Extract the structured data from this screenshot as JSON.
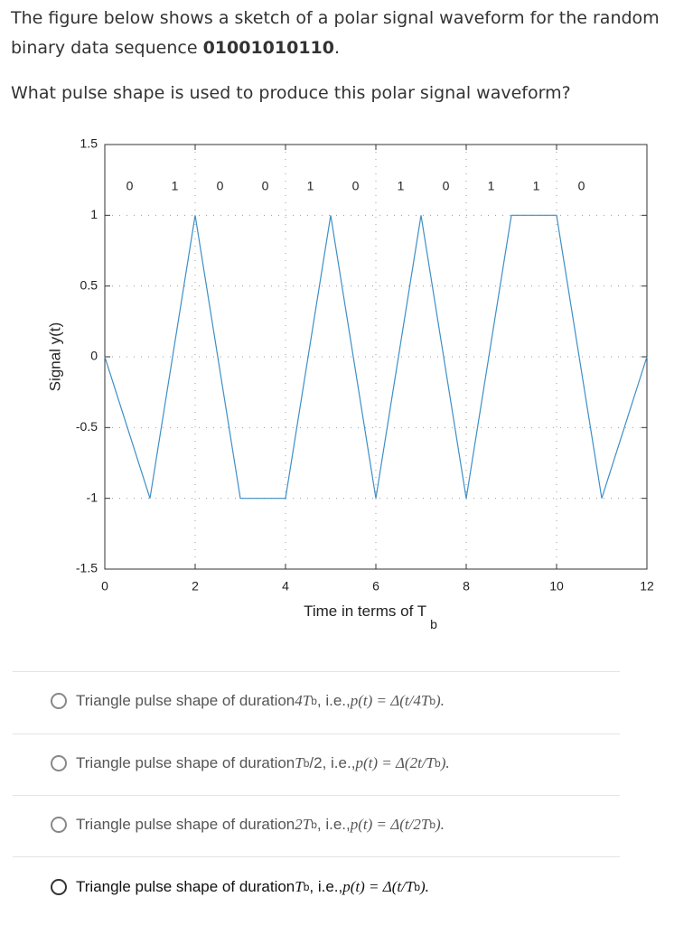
{
  "question": {
    "lead": "The figure below shows a sketch of a polar signal waveform for the random binary data sequence ",
    "sequence": "01001010110",
    "end": ".",
    "prompt": "What pulse shape is used to produce this polar signal waveform?"
  },
  "chart_data": {
    "type": "line",
    "x": [
      0,
      1,
      2,
      3,
      4,
      5,
      6,
      7,
      8,
      9,
      10,
      11,
      12
    ],
    "values": [
      0,
      -1,
      1,
      -1,
      -1,
      1,
      -1,
      1,
      -1,
      1,
      1,
      -1,
      0
    ],
    "color": "#3d8fc6",
    "xlim": [
      0,
      12
    ],
    "xticks": [
      0,
      2,
      4,
      6,
      8,
      10,
      12
    ],
    "ylim": [
      -1.5,
      1.5
    ],
    "yticks": [
      -1.5,
      -1,
      -0.5,
      0,
      0.5,
      1,
      1.5
    ],
    "grid": true,
    "xlabel": "Time in terms of T",
    "xlabel_subscript": "b",
    "ylabel": "Signal y(t)",
    "annotations": [
      {
        "text": "0",
        "x": 0.55,
        "y": 1.2
      },
      {
        "text": "1",
        "x": 1.55,
        "y": 1.2
      },
      {
        "text": "0",
        "x": 2.55,
        "y": 1.2
      },
      {
        "text": "0",
        "x": 3.55,
        "y": 1.2
      },
      {
        "text": "1",
        "x": 4.55,
        "y": 1.2
      },
      {
        "text": "0",
        "x": 5.55,
        "y": 1.2
      },
      {
        "text": "1",
        "x": 6.55,
        "y": 1.2
      },
      {
        "text": "0",
        "x": 7.55,
        "y": 1.2
      },
      {
        "text": "1",
        "x": 8.55,
        "y": 1.2
      },
      {
        "text": "1",
        "x": 9.55,
        "y": 1.2
      },
      {
        "text": "0",
        "x": 10.55,
        "y": 1.2
      }
    ]
  },
  "options": [
    [
      {
        "t": "Triangle pulse shape of duration ",
        "s": "plain"
      },
      {
        "t": "4T",
        "s": "math"
      },
      {
        "t": "b",
        "s": "sub"
      },
      {
        "t": ", i.e., ",
        "s": "plain"
      },
      {
        "t": "p(t) = Δ(t/4T",
        "s": "math"
      },
      {
        "t": "b",
        "s": "sub"
      },
      {
        "t": ").",
        "s": "math"
      }
    ],
    [
      {
        "t": "Triangle pulse shape of duration ",
        "s": "plain"
      },
      {
        "t": "T",
        "s": "math"
      },
      {
        "t": "b",
        "s": "sub"
      },
      {
        "t": "/2, i.e., ",
        "s": "plain"
      },
      {
        "t": "p(t) = Δ(2t/T",
        "s": "math"
      },
      {
        "t": "b",
        "s": "sub"
      },
      {
        "t": ").",
        "s": "math"
      }
    ],
    [
      {
        "t": "Triangle pulse shape of duration ",
        "s": "plain"
      },
      {
        "t": "2T",
        "s": "math"
      },
      {
        "t": "b",
        "s": "sub"
      },
      {
        "t": ", i.e., ",
        "s": "plain"
      },
      {
        "t": "p(t) = Δ(t/2T",
        "s": "math"
      },
      {
        "t": "b",
        "s": "sub"
      },
      {
        "t": ").",
        "s": "math"
      }
    ],
    [
      {
        "t": "Triangle pulse shape of duration ",
        "s": "plain"
      },
      {
        "t": "T",
        "s": "math"
      },
      {
        "t": "b",
        "s": "sub"
      },
      {
        "t": ", i.e., ",
        "s": "plain"
      },
      {
        "t": "p(t) = Δ(t/T",
        "s": "math"
      },
      {
        "t": "b",
        "s": "sub"
      },
      {
        "t": ").",
        "s": "math"
      }
    ]
  ]
}
